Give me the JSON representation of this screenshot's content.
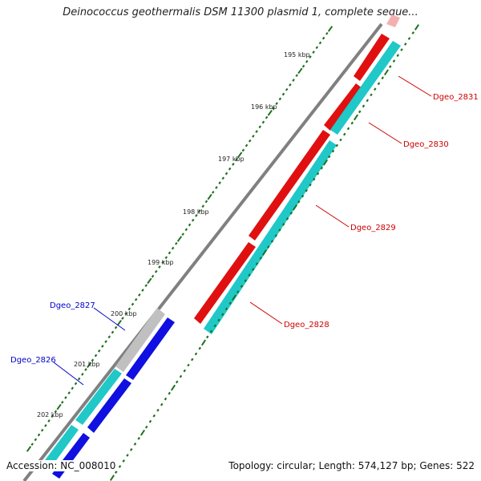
{
  "title": "Deinococcus geothermalis DSM 11300 plasmid 1, complete seque...",
  "footer": {
    "accession": "Accession: NC_008010",
    "stats": "Topology: circular; Length: 574,127 bp; Genes: 522"
  },
  "colors": {
    "forward_gene": "#e01010",
    "forward_cds": "#20c8c8",
    "reverse_gene": "#1010e0",
    "reverse_cds": "#20c8c8",
    "unknown": "#c0c0c0",
    "backbone": "#808080",
    "ticks": "#207020",
    "forward_label": "#cc0000",
    "reverse_label": "#0000cc"
  },
  "ruler": {
    "kbp_labels": [
      "195 kbp",
      "196 kbp",
      "197 kbp",
      "198 kbp",
      "199 kbp",
      "200 kbp",
      "201 kbp",
      "202 kbp"
    ]
  },
  "genes": {
    "forward": [
      "Dgeo_2831",
      "Dgeo_2830",
      "Dgeo_2829",
      "Dgeo_2828"
    ],
    "reverse": [
      "Dgeo_2827",
      "Dgeo_2826"
    ]
  }
}
